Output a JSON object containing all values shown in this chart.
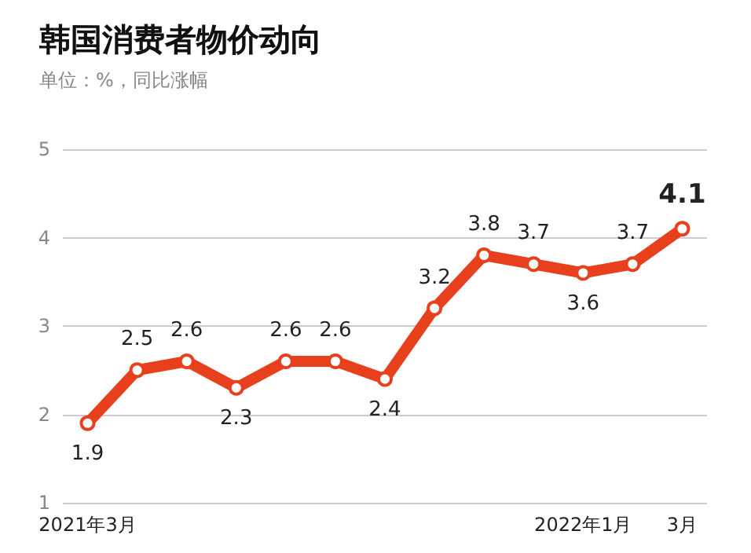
{
  "chart_data": {
    "type": "line",
    "title": "韩国消费者物价动向",
    "subtitle": "单位：%，同比涨幅",
    "categories": [
      "2021年3月",
      null,
      null,
      null,
      null,
      null,
      null,
      null,
      null,
      null,
      "2022年1月",
      null,
      "3月"
    ],
    "series": [
      {
        "color": "#e8401c",
        "values": [
          1.9,
          2.5,
          2.6,
          2.3,
          2.6,
          2.6,
          2.4,
          3.2,
          3.8,
          3.7,
          3.6,
          3.7,
          4.1
        ]
      }
    ],
    "ylim": [
      1,
      5
    ],
    "yticks": [
      1,
      2,
      3,
      4,
      5
    ],
    "grid": "y",
    "marker": "circle",
    "line_style": "solid",
    "data_labels": true
  }
}
